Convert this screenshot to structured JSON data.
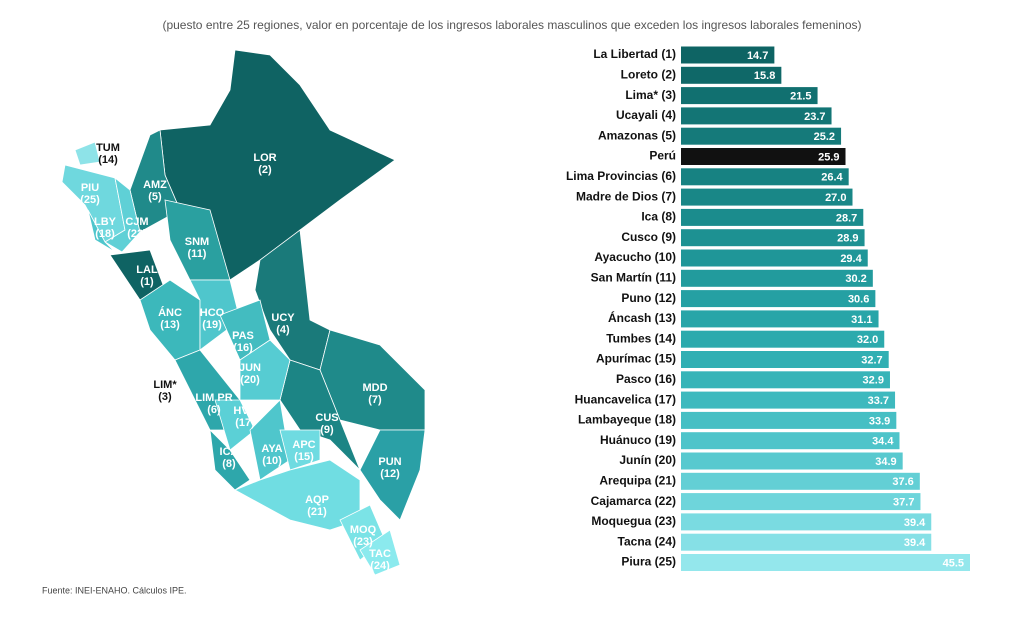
{
  "chart_data": {
    "type": "bar",
    "orientation": "horizontal",
    "subtitle": "(puesto entre 25 regiones, valor en porcentaje de los ingresos laborales masculinos que exceden los ingresos laborales femeninos)",
    "categories": [
      "La Libertad (1)",
      "Loreto (2)",
      "Lima* (3)",
      "Ucayali (4)",
      "Amazonas (5)",
      "Perú",
      "Lima Provincias (6)",
      "Madre de Dios (7)",
      "Ica (8)",
      "Cusco (9)",
      "Ayacucho (10)",
      "San Martín (11)",
      "Puno (12)",
      "Áncash (13)",
      "Tumbes (14)",
      "Apurímac (15)",
      "Pasco (16)",
      "Huancavelica (17)",
      "Lambayeque (18)",
      "Huánuco (19)",
      "Junín (20)",
      "Arequipa (21)",
      "Cajamarca (22)",
      "Moquegua (23)",
      "Tacna (24)",
      "Piura (25)"
    ],
    "values": [
      14.7,
      15.8,
      21.5,
      23.7,
      25.2,
      25.9,
      26.4,
      27.0,
      28.7,
      28.9,
      29.4,
      30.2,
      30.6,
      31.1,
      32.0,
      32.7,
      32.9,
      33.7,
      33.9,
      34.4,
      34.9,
      37.6,
      37.7,
      39.4,
      39.4,
      45.5
    ],
    "value_labels": [
      "14.7",
      "15.8",
      "21.5",
      "23.7",
      "25.2",
      "25.9",
      "26.4",
      "27.0",
      "28.7",
      "28.9",
      "29.4",
      "30.2",
      "30.6",
      "31.1",
      "32.0",
      "32.7",
      "32.9",
      "33.7",
      "33.9",
      "34.4",
      "34.9",
      "37.6",
      "37.7",
      "39.4",
      "39.4",
      "45.5"
    ],
    "colors": [
      "#0e6464",
      "#0f6868",
      "#117070",
      "#137575",
      "#157a7a",
      "#111111",
      "#178282",
      "#198787",
      "#1b8c8d",
      "#1d9192",
      "#1f9698",
      "#229b9d",
      "#25a0a3",
      "#28a5a8",
      "#2caaad",
      "#31afb3",
      "#37b4b8",
      "#3eb9be",
      "#46bfc4",
      "#4ec4ca",
      "#58c9cf",
      "#63cfd5",
      "#6ed5db",
      "#7adbe1",
      "#86e0e6",
      "#94e7ec"
    ],
    "source": "Fuente: INEI-ENAHO. Cálculos IPE."
  },
  "map": {
    "labels": [
      {
        "code": "TUM",
        "rank": "(14)"
      },
      {
        "code": "LOR",
        "rank": "(2)"
      },
      {
        "code": "AMZ",
        "rank": "(5)"
      },
      {
        "code": "PIU",
        "rank": "(25)"
      },
      {
        "code": "LBY",
        "rank": "(18)"
      },
      {
        "code": "CJM",
        "rank": "(22)"
      },
      {
        "code": "SNM",
        "rank": "(11)"
      },
      {
        "code": "LAL",
        "rank": "(1)"
      },
      {
        "code": "ÁNC",
        "rank": "(13)"
      },
      {
        "code": "HCO",
        "rank": "(19)"
      },
      {
        "code": "PAS",
        "rank": "(16)"
      },
      {
        "code": "UCY",
        "rank": "(4)"
      },
      {
        "code": "JUN",
        "rank": "(20)"
      },
      {
        "code": "LIM*",
        "rank": "(3)"
      },
      {
        "code": "LIM PR",
        "rank": "(6)"
      },
      {
        "code": "HVC",
        "rank": "(17)"
      },
      {
        "code": "MDD",
        "rank": "(7)"
      },
      {
        "code": "CUS",
        "rank": "(9)"
      },
      {
        "code": "AYA",
        "rank": "(10)"
      },
      {
        "code": "APC",
        "rank": "(15)"
      },
      {
        "code": "ICA",
        "rank": "(8)"
      },
      {
        "code": "PUN",
        "rank": "(12)"
      },
      {
        "code": "AQP",
        "rank": "(21)"
      },
      {
        "code": "MOQ",
        "rank": "(23)"
      },
      {
        "code": "TAC",
        "rank": "(24)"
      }
    ]
  }
}
